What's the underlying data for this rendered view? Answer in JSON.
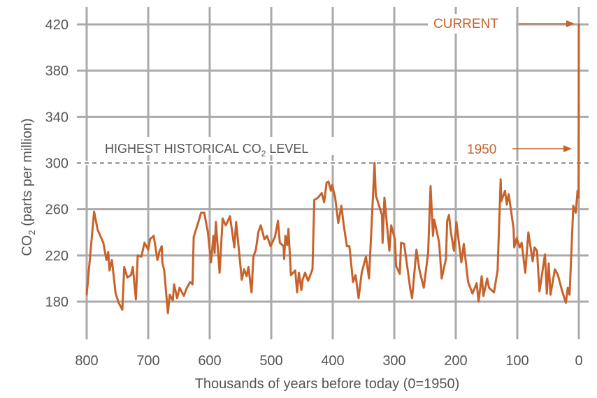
{
  "chart_data": {
    "type": "line",
    "title": "",
    "xlabel": "Thousands of years before today (0=1950)",
    "ylabel": {
      "prefix": "CO",
      "sub": "2",
      "suffix": " (parts per million)"
    },
    "xlim": [
      800,
      0
    ],
    "ylim": [
      180,
      420
    ],
    "x_reversed": true,
    "grid": true,
    "x_ticks": [
      "800",
      "700",
      "600",
      "500",
      "400",
      "300",
      "200",
      "100",
      "0"
    ],
    "x_tick_values": [
      800,
      700,
      600,
      500,
      400,
      300,
      200,
      100,
      0
    ],
    "y_ticks": [
      "180",
      "220",
      "260",
      "300",
      "340",
      "380",
      "420"
    ],
    "y_tick_values": [
      180,
      220,
      260,
      300,
      340,
      380,
      420
    ],
    "colors": {
      "series": "#c8622b",
      "grid": "#aaaaaa",
      "text": "#555555"
    },
    "reference_line": {
      "value": 300,
      "style": "dashed",
      "label_prefix": "HIGHEST HISTORICAL CO",
      "label_sub": "2",
      "label_suffix": " LEVEL"
    },
    "annotations": [
      {
        "text": "CURRENT",
        "x": 0,
        "y": 420
      },
      {
        "text": "1950",
        "x": 0,
        "y": 312
      }
    ],
    "series": [
      {
        "x": [
          800,
          788,
          782,
          773,
          768,
          765,
          763,
          759,
          753,
          748,
          742,
          739,
          734,
          728,
          725,
          720,
          717,
          711,
          706,
          700,
          697,
          691,
          685,
          682,
          678,
          677,
          674,
          668,
          665,
          660,
          658,
          653,
          649,
          642,
          638,
          632,
          628,
          626,
          619,
          614,
          609,
          603,
          598,
          594,
          592,
          590,
          584,
          579,
          574,
          567,
          560,
          557,
          552,
          548,
          544,
          540,
          537,
          532,
          529,
          525,
          521,
          517,
          511,
          507,
          501,
          494,
          489,
          486,
          480,
          479,
          477,
          474,
          472,
          468,
          461,
          458,
          455,
          451,
          449,
          445,
          440,
          433,
          430,
          424,
          418,
          414,
          410,
          407,
          403,
          401,
          396,
          391,
          386,
          382,
          377,
          373,
          367,
          363,
          358,
          353,
          346,
          341,
          332,
          330,
          320,
          319,
          316,
          308,
          305,
          299,
          297,
          291,
          289,
          284,
          274,
          271,
          264,
          259,
          252,
          245,
          241,
          237,
          235,
          227,
          223,
          216,
          214,
          211,
          208,
          203,
          199,
          191,
          187,
          180,
          173,
          166,
          163,
          158,
          155,
          149,
          146,
          138,
          132,
          127,
          126,
          120,
          117,
          114,
          106,
          105,
          101,
          96,
          93,
          87,
          82,
          75,
          72,
          68,
          64,
          55,
          52,
          49,
          46,
          39,
          34,
          27,
          21,
          18,
          15,
          9,
          5,
          2,
          0.5,
          0
        ],
        "y": [
          186,
          258,
          242,
          231,
          216,
          223,
          207,
          216,
          187,
          179,
          173,
          210,
          201,
          203,
          210,
          182,
          220,
          219,
          231,
          225,
          234,
          237,
          216,
          223,
          228,
          214,
          207,
          170,
          186,
          181,
          195,
          183,
          192,
          185,
          191,
          197,
          195,
          236,
          248,
          257,
          257,
          240,
          214,
          237,
          222,
          249,
          205,
          252,
          246,
          254,
          227,
          249,
          222,
          199,
          208,
          202,
          210,
          188,
          219,
          225,
          240,
          246,
          234,
          237,
          228,
          236,
          250,
          231,
          228,
          217,
          237,
          229,
          243,
          203,
          207,
          188,
          205,
          190,
          199,
          205,
          198,
          208,
          268,
          270,
          274,
          266,
          283,
          284,
          276,
          281,
          270,
          248,
          263,
          246,
          228,
          228,
          197,
          203,
          183,
          205,
          219,
          200,
          300,
          272,
          255,
          231,
          270,
          224,
          246,
          234,
          211,
          204,
          231,
          230,
          191,
          183,
          225,
          207,
          192,
          222,
          280,
          237,
          251,
          231,
          200,
          217,
          250,
          255,
          240,
          224,
          249,
          214,
          230,
          197,
          187,
          196,
          180,
          202,
          185,
          200,
          192,
          188,
          207,
          286,
          267,
          276,
          264,
          273,
          243,
          227,
          235,
          227,
          231,
          205,
          240,
          215,
          227,
          224,
          189,
          221,
          187,
          213,
          186,
          208,
          203,
          189,
          179,
          192,
          186,
          263,
          257,
          276,
          270,
          420
        ]
      }
    ]
  }
}
